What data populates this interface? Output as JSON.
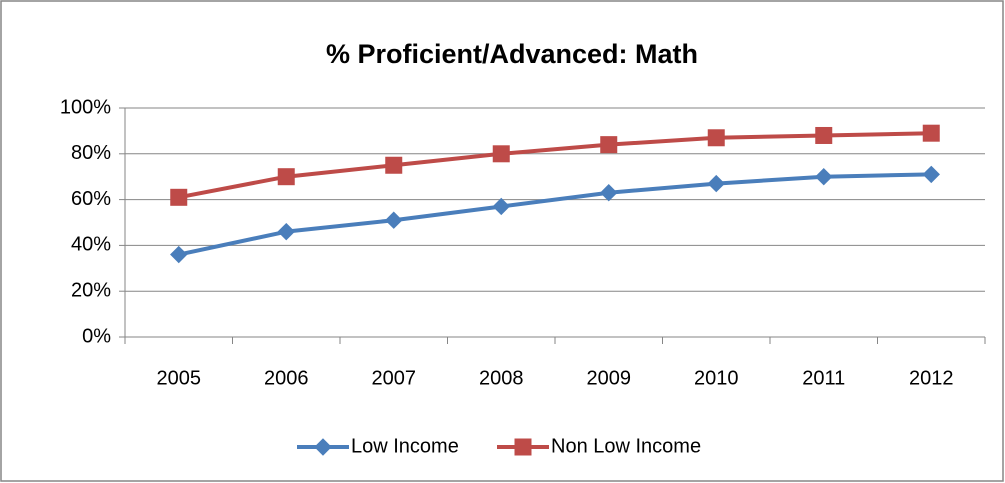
{
  "chart_data": {
    "type": "line",
    "title": "% Proficient/Advanced: Math",
    "categories": [
      "2005",
      "2006",
      "2007",
      "2008",
      "2009",
      "2010",
      "2011",
      "2012"
    ],
    "series": [
      {
        "name": "Low Income",
        "color": "#4a7ebb",
        "marker": "diamond",
        "values": [
          36,
          46,
          51,
          57,
          63,
          67,
          70,
          71
        ]
      },
      {
        "name": "Non Low Income",
        "color": "#be4b48",
        "marker": "square",
        "values": [
          61,
          70,
          75,
          80,
          84,
          87,
          88,
          89
        ]
      }
    ],
    "ylim": [
      0,
      100
    ],
    "yticks": [
      {
        "value": 0,
        "label": "0%"
      },
      {
        "value": 20,
        "label": "20%"
      },
      {
        "value": 40,
        "label": "40%"
      },
      {
        "value": 60,
        "label": "60%"
      },
      {
        "value": 80,
        "label": "80%"
      },
      {
        "value": 100,
        "label": "100%"
      }
    ],
    "grid": true,
    "legend": "bottom"
  }
}
